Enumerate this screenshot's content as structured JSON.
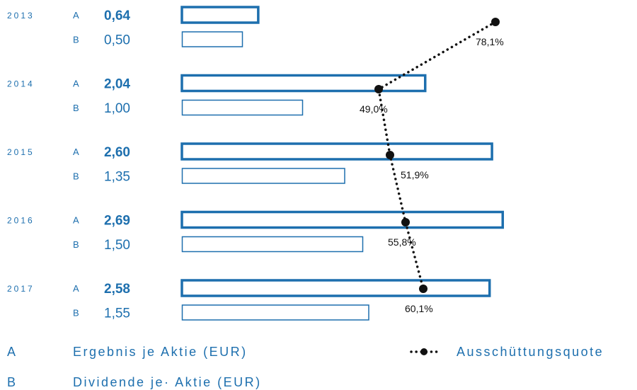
{
  "chart_data": {
    "type": "bar",
    "orientation": "horizontal",
    "categories": [
      "2013",
      "2014",
      "2015",
      "2016",
      "2017"
    ],
    "series": [
      {
        "key": "A",
        "name": "Ergebnis je Aktie (EUR)",
        "values": [
          0.64,
          2.04,
          2.6,
          2.69,
          2.58
        ],
        "labels": [
          "0,64",
          "2,04",
          "2,60",
          "2,69",
          "2,58"
        ]
      },
      {
        "key": "B",
        "name": "Dividende je· Aktie (EUR)",
        "values": [
          0.5,
          1.0,
          1.35,
          1.5,
          1.55
        ],
        "labels": [
          "0,50",
          "1,00",
          "1,35",
          "1,50",
          "1,55"
        ]
      }
    ],
    "line_series": {
      "name": "Ausschüttungsquote",
      "values": [
        78.1,
        49.0,
        51.9,
        55.8,
        60.1
      ],
      "labels": [
        "78,1%",
        "49,0%",
        "51,9%",
        "55,8%",
        "60,1%"
      ]
    },
    "legend_placement": "bottom",
    "grid": false
  },
  "legend": {
    "a_key": "A",
    "a_text": "Ergebnis je Aktie (EUR)",
    "b_key": "B",
    "b_text": "Dividende je· Aktie (EUR)",
    "line_text": "Ausschüttungsquote"
  },
  "colors": {
    "accent": "#1d6fae",
    "line": "#111111"
  }
}
